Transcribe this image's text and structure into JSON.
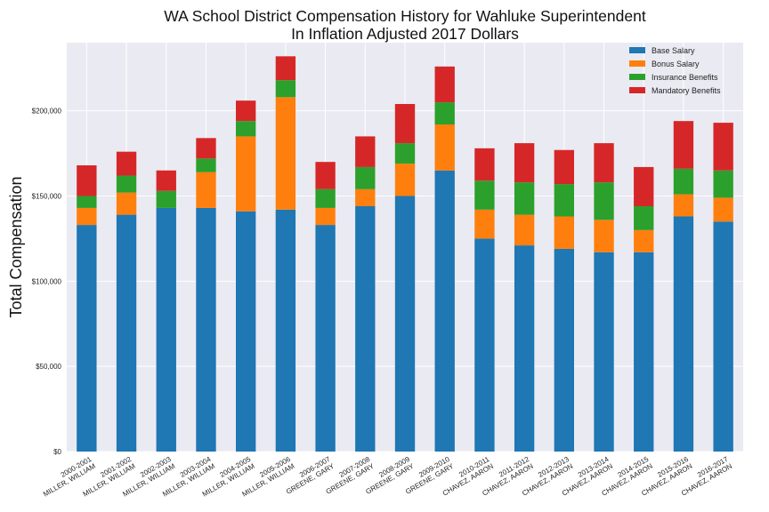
{
  "chart_data": {
    "type": "bar",
    "stacked": true,
    "title": [
      "WA School District Compensation History for Wahluke Superintendent",
      "In Inflation Adjusted 2017 Dollars"
    ],
    "xlabel": "",
    "ylabel": "Total Compensation",
    "ylim": [
      0,
      240000
    ],
    "yticks": [
      0,
      50000,
      100000,
      150000,
      200000
    ],
    "ytick_labels": [
      "$0",
      "$50,000",
      "$100,000",
      "$150,000",
      "$200,000"
    ],
    "grid": true,
    "legend_position": "top-right",
    "categories": [
      "2000-2001\nMILLER, WILLIAM",
      "2001-2002\nMILLER, WILLIAM",
      "2002-2003\nMILLER, WILLIAM",
      "2003-2004\nMILLER, WILLIAM",
      "2004-2005\nMILLER, WILLIAM",
      "2005-2006\nMILLER, WILLIAM",
      "2006-2007\nGREENE, GARY",
      "2007-2008\nGREENE, GARY",
      "2008-2009\nGREENE, GARY",
      "2009-2010\nGREENE, GARY",
      "2010-2011\nCHAVEZ, AARON",
      "2011-2012\nCHAVEZ, AARON",
      "2012-2013\nCHAVEZ, AARON",
      "2013-2014\nCHAVEZ, AARON",
      "2014-2015\nCHAVEZ, AARON",
      "2015-2016\nCHAVEZ, AARON",
      "2016-2017\nCHAVEZ, AARON"
    ],
    "series": [
      {
        "name": "Base Salary",
        "color": "#1f77b4",
        "values": [
          133000,
          139000,
          143000,
          143000,
          141000,
          142000,
          133000,
          144000,
          150000,
          165000,
          125000,
          121000,
          119000,
          117000,
          117000,
          138000,
          135000
        ]
      },
      {
        "name": "Bonus Salary",
        "color": "#ff7f0e",
        "values": [
          10000,
          13000,
          0,
          21000,
          44000,
          66000,
          10000,
          10000,
          19000,
          27000,
          17000,
          18000,
          19000,
          19000,
          13000,
          13000,
          14000
        ]
      },
      {
        "name": "Insurance Benefits",
        "color": "#2ca02c",
        "values": [
          7000,
          10000,
          10000,
          8000,
          9000,
          10000,
          11000,
          13000,
          12000,
          13000,
          17000,
          19000,
          19000,
          22000,
          14000,
          15000,
          16000
        ]
      },
      {
        "name": "Mandatory Benefits",
        "color": "#d62728",
        "values": [
          18000,
          14000,
          12000,
          12000,
          12000,
          14000,
          16000,
          18000,
          23000,
          21000,
          19000,
          23000,
          20000,
          23000,
          23000,
          28000,
          28000
        ]
      }
    ]
  }
}
